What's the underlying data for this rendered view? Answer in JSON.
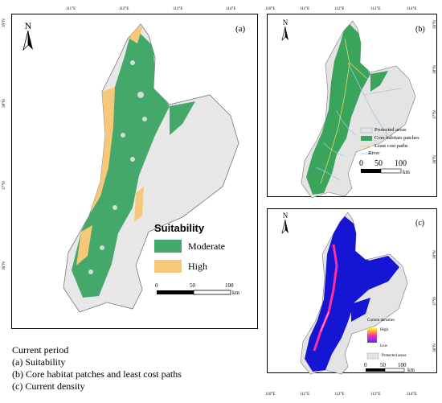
{
  "ticks": {
    "top_a": [
      "111°E",
      "112°E",
      "113°E",
      "114°E"
    ],
    "left_a": [
      "39°N",
      "38°N",
      "37°N",
      "36°N"
    ],
    "top_b": [
      "110°E",
      "111°E",
      "112°E",
      "113°E",
      "114°E"
    ],
    "right_b": [
      "39°N",
      "38°N",
      "37°N",
      "36°N"
    ],
    "right_c": [
      "38°N",
      "37°N",
      "36°N"
    ],
    "bottom_c": [
      "110°E",
      "111°E",
      "112°E",
      "113°E",
      "114°E"
    ]
  },
  "panel_a": {
    "letter": "(a)",
    "north": "N",
    "legend": {
      "title": "Suitability",
      "items": [
        {
          "label": "Moderate",
          "color": "#43a86a"
        },
        {
          "label": "High",
          "color": "#f7c77a"
        }
      ]
    },
    "scale": {
      "labels": [
        "0",
        "50",
        "100"
      ],
      "unit": "km"
    }
  },
  "panel_b": {
    "letter": "(b)",
    "north": "N",
    "legend": [
      {
        "label": "Protected areas",
        "color": "#e4e4e4"
      },
      {
        "label": "Core habitats patches",
        "color": "#3aa35c"
      },
      {
        "label": "Least cost paths",
        "color": "#f2d65b"
      },
      {
        "label": "River",
        "color": "#9cc9e8"
      }
    ],
    "scale": {
      "labels": [
        "0",
        "50",
        "100"
      ],
      "unit": "km"
    }
  },
  "panel_c": {
    "letter": "(c)",
    "north": "N",
    "legend": {
      "title": "Current densities",
      "high": "High",
      "low": "Low",
      "protected": "Protected areas"
    },
    "scale": {
      "labels": [
        "0",
        "50",
        "100"
      ],
      "unit": "km"
    }
  },
  "colors": {
    "region": "#e8e8e8",
    "moderate": "#43a86a",
    "high": "#f7c77a",
    "core": "#3aa35c",
    "density_low": "#1515d4",
    "density_high": "#ff2fa0"
  },
  "caption": [
    "Current period",
    "(a) Suitability",
    "(b) Core habitat patches and least cost paths",
    "(c) Current density"
  ]
}
